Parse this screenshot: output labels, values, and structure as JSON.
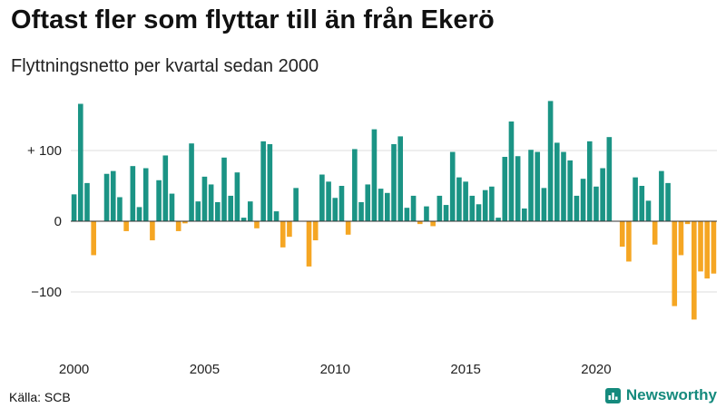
{
  "chart_data": {
    "type": "bar",
    "title": "Oftast fler som flyttar till än från Ekerö",
    "subtitle": "Flyttningsnetto per kvartal sedan 2000",
    "x_start": 2000,
    "values": [
      38,
      166,
      54,
      -48,
      0,
      67,
      71,
      34,
      -14,
      78,
      20,
      75,
      -27,
      58,
      93,
      39,
      -14,
      -3,
      110,
      28,
      63,
      52,
      27,
      90,
      36,
      69,
      5,
      28,
      -10,
      113,
      109,
      14,
      -37,
      -22,
      47,
      0,
      -64,
      -27,
      66,
      56,
      33,
      50,
      -19,
      102,
      27,
      52,
      130,
      46,
      40,
      109,
      120,
      19,
      36,
      -4,
      21,
      -7,
      36,
      23,
      98,
      62,
      56,
      36,
      24,
      44,
      49,
      5,
      91,
      141,
      92,
      18,
      101,
      98,
      47,
      170,
      111,
      98,
      86,
      36,
      60,
      113,
      49,
      75,
      119,
      0,
      -36,
      -57,
      62,
      50,
      29,
      -33,
      71,
      54,
      -120,
      -48,
      -4,
      -139,
      -71,
      -81,
      -74
    ],
    "ylim": [
      -155,
      180
    ],
    "yticks": [
      100,
      0,
      -100
    ],
    "ytick_labels": [
      "+ 100",
      "0",
      "−100"
    ],
    "xticks": [
      2000,
      2005,
      2010,
      2015,
      2020
    ],
    "grid": true,
    "colors": {
      "positive": "#1b9485",
      "negative": "#f5a623",
      "grid": "#dddddd",
      "zero_line": "#333333"
    }
  },
  "footer": {
    "source": "Källa: SCB",
    "brand": "Newsworthy"
  }
}
